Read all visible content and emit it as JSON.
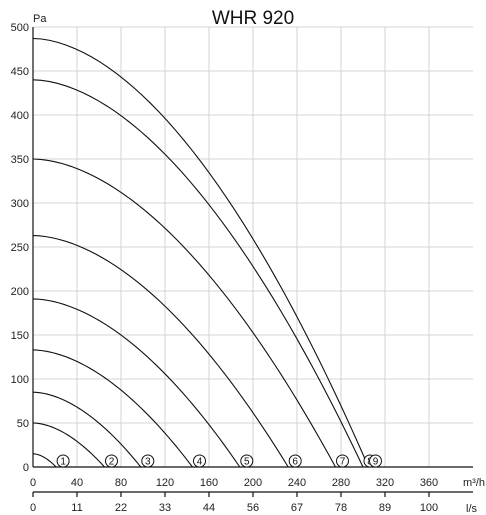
{
  "chart_data": {
    "type": "line",
    "title": "WHR 920",
    "ylabel": "Pa",
    "xlabel": "m³/h",
    "xlabel_secondary": "l/s",
    "xlim": [
      0,
      400
    ],
    "ylim": [
      0,
      500
    ],
    "y_ticks": [
      0,
      50,
      100,
      150,
      200,
      250,
      300,
      350,
      400,
      450,
      500
    ],
    "y_tick_labels": [
      "0",
      "50",
      "100",
      "150",
      "200",
      "250",
      "300",
      "350",
      "400",
      "450",
      "500"
    ],
    "x_ticks": [
      0,
      40,
      80,
      120,
      160,
      200,
      240,
      280,
      320,
      360
    ],
    "x_tick_labels": [
      "0",
      "40",
      "80",
      "120",
      "160",
      "200",
      "240",
      "280",
      "320",
      "360"
    ],
    "x2_ticks": [
      0,
      40,
      80,
      120,
      160,
      200,
      240,
      280,
      320,
      360
    ],
    "x2_tick_labels": [
      "0",
      "11",
      "22",
      "33",
      "44",
      "56",
      "67",
      "78",
      "89",
      "100"
    ],
    "grid": true,
    "series": [
      {
        "label": "1",
        "x0": 0,
        "y0": 15,
        "x_end": 21
      },
      {
        "label": "2",
        "x0": 0,
        "y0": 50,
        "x_end": 65
      },
      {
        "label": "3",
        "x0": 0,
        "y0": 85,
        "x_end": 98
      },
      {
        "label": "4",
        "x0": 0,
        "y0": 133,
        "x_end": 145
      },
      {
        "label": "5",
        "x0": 0,
        "y0": 191,
        "x_end": 188
      },
      {
        "label": "6",
        "x0": 0,
        "y0": 263,
        "x_end": 232
      },
      {
        "label": "7",
        "x0": 0,
        "y0": 350,
        "x_end": 275
      },
      {
        "label": "8",
        "x0": 0,
        "y0": 440,
        "x_end": 300
      },
      {
        "label": "9",
        "x0": 0,
        "y0": 487,
        "x_end": 305
      }
    ]
  }
}
